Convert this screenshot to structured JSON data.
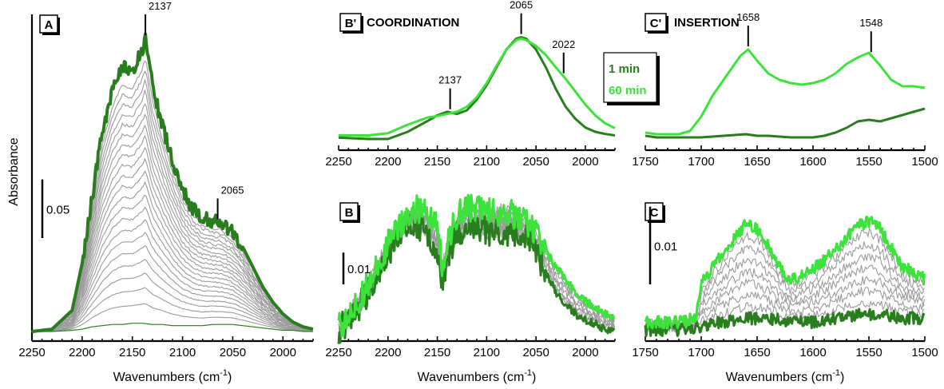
{
  "colors": {
    "dark_green": "#2a7d1e",
    "light_green": "#3be33b",
    "grey": "#9b9b9b"
  },
  "figure": {
    "ylabel": "Absorbance",
    "xlabel_main": "Wavenumbers (cm",
    "xlabel_sup": "-1",
    "xlabel_end": ")"
  },
  "chart_data": [
    {
      "id": "A",
      "type": "line",
      "panel_label": "A",
      "title": "",
      "xlabel": "Wavenumbers (cm-1)",
      "ylabel": "Absorbance",
      "xlim": [
        2250,
        1970
      ],
      "x_reversed": true,
      "xticks": [
        2250,
        2200,
        2150,
        2100,
        2050,
        2000
      ],
      "scale_bar_label": "0.05",
      "scale_bar_value": 0.05,
      "annotations": [
        {
          "label": "2137",
          "x": 2137
        },
        {
          "label": "2065",
          "x": 2065
        }
      ],
      "series": [
        {
          "role": "first",
          "color": "dark_green",
          "x": [
            2250,
            2230,
            2210,
            2200,
            2190,
            2180,
            2170,
            2160,
            2150,
            2140,
            2130,
            2120,
            2110,
            2100,
            2090,
            2080,
            2070,
            2060,
            2050,
            2040,
            2030,
            2020,
            2010,
            2000,
            1990,
            1980,
            1970
          ],
          "y": [
            0.0,
            0.0,
            0.001,
            0.002,
            0.004,
            0.005,
            0.006,
            0.006,
            0.007,
            0.007,
            0.006,
            0.006,
            0.005,
            0.005,
            0.005,
            0.005,
            0.006,
            0.006,
            0.006,
            0.005,
            0.004,
            0.003,
            0.002,
            0.001,
            0.001,
            0.0,
            0.0
          ]
        },
        {
          "role": "intermediate",
          "color": "grey",
          "x": [
            2250,
            2230,
            2210,
            2200,
            2190,
            2180,
            2170,
            2160,
            2150,
            2140,
            2130,
            2120,
            2110,
            2100,
            2090,
            2080,
            2070,
            2060,
            2050,
            2040,
            2030,
            2020,
            2010,
            2000,
            1990,
            1980,
            1970
          ],
          "y": [
            0.0,
            0.001,
            0.004,
            0.01,
            0.02,
            0.03,
            0.038,
            0.042,
            0.044,
            0.044,
            0.04,
            0.035,
            0.03,
            0.027,
            0.027,
            0.029,
            0.031,
            0.032,
            0.031,
            0.027,
            0.02,
            0.014,
            0.009,
            0.005,
            0.003,
            0.002,
            0.001
          ]
        },
        {
          "role": "intermediate",
          "color": "grey",
          "x": [
            2250,
            2230,
            2210,
            2200,
            2190,
            2180,
            2170,
            2160,
            2150,
            2140,
            2130,
            2120,
            2110,
            2100,
            2090,
            2080,
            2070,
            2060,
            2050,
            2040,
            2030,
            2020,
            2010,
            2000,
            1990,
            1980,
            1970
          ],
          "y": [
            0.0,
            0.001,
            0.008,
            0.025,
            0.05,
            0.075,
            0.095,
            0.105,
            0.11,
            0.108,
            0.098,
            0.085,
            0.072,
            0.062,
            0.058,
            0.058,
            0.06,
            0.06,
            0.057,
            0.048,
            0.036,
            0.025,
            0.016,
            0.009,
            0.005,
            0.003,
            0.002
          ]
        },
        {
          "role": "intermediate",
          "color": "grey",
          "x": [
            2250,
            2230,
            2210,
            2200,
            2190,
            2180,
            2170,
            2160,
            2150,
            2140,
            2130,
            2120,
            2110,
            2100,
            2090,
            2080,
            2070,
            2060,
            2050,
            2040,
            2030,
            2020,
            2010,
            2000,
            1990,
            1980,
            1970
          ],
          "y": [
            0.0,
            0.002,
            0.012,
            0.04,
            0.08,
            0.12,
            0.15,
            0.165,
            0.17,
            0.172,
            0.155,
            0.13,
            0.108,
            0.092,
            0.082,
            0.078,
            0.077,
            0.076,
            0.07,
            0.059,
            0.045,
            0.031,
            0.02,
            0.012,
            0.007,
            0.004,
            0.002
          ]
        },
        {
          "role": "intermediate",
          "color": "grey",
          "x": [
            2250,
            2230,
            2210,
            2200,
            2190,
            2180,
            2170,
            2160,
            2150,
            2140,
            2130,
            2120,
            2110,
            2100,
            2090,
            2080,
            2070,
            2060,
            2050,
            2040,
            2030,
            2020,
            2010,
            2000,
            1990,
            1980,
            1970
          ],
          "y": [
            0.0,
            0.002,
            0.015,
            0.05,
            0.1,
            0.15,
            0.185,
            0.205,
            0.205,
            0.215,
            0.19,
            0.16,
            0.132,
            0.11,
            0.097,
            0.09,
            0.088,
            0.086,
            0.079,
            0.067,
            0.051,
            0.035,
            0.023,
            0.014,
            0.008,
            0.004,
            0.002
          ]
        },
        {
          "role": "last",
          "color": "dark_green",
          "x": [
            2250,
            2230,
            2210,
            2200,
            2190,
            2180,
            2170,
            2160,
            2150,
            2140,
            2137,
            2130,
            2120,
            2110,
            2100,
            2090,
            2080,
            2070,
            2060,
            2050,
            2040,
            2030,
            2020,
            2010,
            2000,
            1990,
            1980,
            1970
          ],
          "y": [
            0.0,
            0.002,
            0.018,
            0.058,
            0.115,
            0.17,
            0.205,
            0.225,
            0.222,
            0.24,
            0.25,
            0.21,
            0.175,
            0.145,
            0.12,
            0.105,
            0.097,
            0.094,
            0.092,
            0.085,
            0.072,
            0.055,
            0.038,
            0.025,
            0.015,
            0.008,
            0.004,
            0.002
          ]
        }
      ]
    },
    {
      "id": "Bp",
      "type": "line",
      "panel_label": "B'",
      "title": "COORDINATION",
      "xlabel": "",
      "xlim": [
        2250,
        1970
      ],
      "x_reversed": true,
      "xticks": [
        2250,
        2200,
        2150,
        2100,
        2050,
        2000
      ],
      "annotations": [
        {
          "label": "2137",
          "x": 2137
        },
        {
          "label": "2065",
          "x": 2065
        },
        {
          "label": "2022",
          "x": 2022
        }
      ],
      "series": [
        {
          "name": "1 min",
          "color": "dark_green",
          "x": [
            2250,
            2220,
            2200,
            2180,
            2160,
            2150,
            2140,
            2130,
            2120,
            2110,
            2100,
            2090,
            2080,
            2070,
            2065,
            2060,
            2050,
            2040,
            2030,
            2020,
            2010,
            2000,
            1990,
            1980,
            1970
          ],
          "y": [
            0.002,
            0.0,
            0.0,
            0.01,
            0.025,
            0.033,
            0.038,
            0.035,
            0.04,
            0.055,
            0.075,
            0.1,
            0.125,
            0.14,
            0.142,
            0.14,
            0.125,
            0.1,
            0.07,
            0.045,
            0.028,
            0.016,
            0.01,
            0.007,
            0.005
          ]
        },
        {
          "name": "60 min",
          "color": "light_green",
          "x": [
            2250,
            2220,
            2200,
            2180,
            2160,
            2150,
            2140,
            2130,
            2120,
            2110,
            2100,
            2090,
            2080,
            2070,
            2065,
            2060,
            2050,
            2040,
            2030,
            2020,
            2010,
            2000,
            1990,
            1980,
            1970
          ],
          "y": [
            0.005,
            0.005,
            0.008,
            0.02,
            0.03,
            0.032,
            0.035,
            0.038,
            0.045,
            0.058,
            0.078,
            0.102,
            0.125,
            0.138,
            0.14,
            0.138,
            0.13,
            0.117,
            0.1,
            0.084,
            0.066,
            0.048,
            0.033,
            0.022,
            0.015
          ]
        }
      ]
    },
    {
      "id": "Cp",
      "type": "line",
      "panel_label": "C'",
      "title": "INSERTION",
      "xlabel": "",
      "xlim": [
        1750,
        1500
      ],
      "x_reversed": true,
      "xticks": [
        1750,
        1700,
        1650,
        1600,
        1550,
        1500
      ],
      "annotations": [
        {
          "label": "1658",
          "x": 1658
        },
        {
          "label": "1548",
          "x": 1548
        }
      ],
      "series": [
        {
          "name": "1 min",
          "color": "dark_green",
          "x": [
            1750,
            1740,
            1720,
            1700,
            1680,
            1660,
            1650,
            1640,
            1620,
            1600,
            1590,
            1580,
            1570,
            1560,
            1550,
            1540,
            1530,
            1520,
            1510,
            1500
          ],
          "y": [
            0.003,
            0.002,
            0.002,
            0.002,
            0.003,
            0.004,
            0.003,
            0.003,
            0.002,
            0.002,
            0.003,
            0.005,
            0.008,
            0.012,
            0.013,
            0.012,
            0.014,
            0.016,
            0.018,
            0.02
          ]
        },
        {
          "name": "60 min",
          "color": "light_green",
          "x": [
            1750,
            1740,
            1720,
            1710,
            1700,
            1690,
            1680,
            1670,
            1665,
            1658,
            1650,
            1640,
            1630,
            1620,
            1610,
            1600,
            1590,
            1580,
            1570,
            1560,
            1550,
            1540,
            1530,
            1520,
            1510,
            1500
          ],
          "y": [
            0.005,
            0.004,
            0.004,
            0.006,
            0.015,
            0.028,
            0.038,
            0.048,
            0.053,
            0.057,
            0.05,
            0.042,
            0.038,
            0.036,
            0.035,
            0.036,
            0.038,
            0.042,
            0.048,
            0.052,
            0.055,
            0.047,
            0.038,
            0.034,
            0.034,
            0.033
          ]
        }
      ]
    },
    {
      "id": "B",
      "type": "line",
      "panel_label": "B",
      "title": "",
      "xlabel": "Wavenumbers (cm-1)",
      "xlim": [
        2250,
        1970
      ],
      "x_reversed": true,
      "xticks": [
        2250,
        2200,
        2150,
        2100,
        2050,
        2000
      ],
      "scale_bar_label": "0.01",
      "scale_bar_value": 0.01,
      "annotations": [],
      "series": [
        {
          "role": "first",
          "color": "dark_green",
          "x": [
            2250,
            2240,
            2230,
            2220,
            2210,
            2200,
            2190,
            2180,
            2170,
            2160,
            2150,
            2145,
            2140,
            2130,
            2120,
            2110,
            2100,
            2090,
            2080,
            2070,
            2060,
            2050,
            2040,
            2030,
            2020,
            2010,
            2000,
            1990,
            1980,
            1970
          ],
          "y": [
            0.0,
            0.003,
            0.007,
            0.012,
            0.018,
            0.024,
            0.029,
            0.032,
            0.033,
            0.031,
            0.025,
            0.016,
            0.022,
            0.03,
            0.032,
            0.032,
            0.031,
            0.031,
            0.031,
            0.031,
            0.03,
            0.025,
            0.018,
            0.012,
            0.008,
            0.005,
            0.003,
            0.002,
            0.0,
            0.0
          ]
        },
        {
          "role": "last",
          "color": "light_green",
          "x": [
            2250,
            2240,
            2230,
            2220,
            2210,
            2200,
            2190,
            2180,
            2170,
            2160,
            2150,
            2145,
            2140,
            2130,
            2120,
            2110,
            2100,
            2090,
            2080,
            2070,
            2060,
            2050,
            2040,
            2030,
            2020,
            2010,
            2000,
            1990,
            1980,
            1970
          ],
          "y": [
            0.001,
            0.004,
            0.009,
            0.015,
            0.021,
            0.027,
            0.032,
            0.036,
            0.038,
            0.037,
            0.032,
            0.02,
            0.028,
            0.036,
            0.038,
            0.038,
            0.038,
            0.037,
            0.037,
            0.036,
            0.034,
            0.03,
            0.025,
            0.02,
            0.016,
            0.012,
            0.009,
            0.007,
            0.005,
            0.004
          ]
        }
      ]
    },
    {
      "id": "C",
      "type": "line",
      "panel_label": "C",
      "title": "",
      "xlabel": "Wavenumbers (cm-1)",
      "xlim": [
        1750,
        1500
      ],
      "x_reversed": true,
      "xticks": [
        1750,
        1700,
        1650,
        1600,
        1550,
        1500
      ],
      "scale_bar_label": "0.01",
      "scale_bar_value": 0.01,
      "annotations": [],
      "series": [
        {
          "role": "first",
          "color": "dark_green",
          "x": [
            1750,
            1720,
            1700,
            1680,
            1660,
            1640,
            1620,
            1600,
            1580,
            1560,
            1540,
            1520,
            1500
          ],
          "y": [
            0.0,
            0.0,
            0.0005,
            0.001,
            0.0015,
            0.0015,
            0.001,
            0.001,
            0.0015,
            0.002,
            0.002,
            0.0015,
            0.0015
          ]
        },
        {
          "role": "last",
          "color": "light_green",
          "x": [
            1750,
            1740,
            1720,
            1705,
            1700,
            1690,
            1680,
            1670,
            1660,
            1650,
            1640,
            1630,
            1620,
            1610,
            1600,
            1590,
            1580,
            1570,
            1560,
            1550,
            1540,
            1530,
            1520,
            1510,
            1500
          ],
          "y": [
            0.001,
            0.001,
            0.001,
            0.0015,
            0.006,
            0.008,
            0.01,
            0.012,
            0.0135,
            0.013,
            0.011,
            0.008,
            0.0065,
            0.007,
            0.008,
            0.009,
            0.0105,
            0.012,
            0.0135,
            0.014,
            0.013,
            0.0105,
            0.008,
            0.0075,
            0.0065
          ]
        }
      ]
    }
  ]
}
